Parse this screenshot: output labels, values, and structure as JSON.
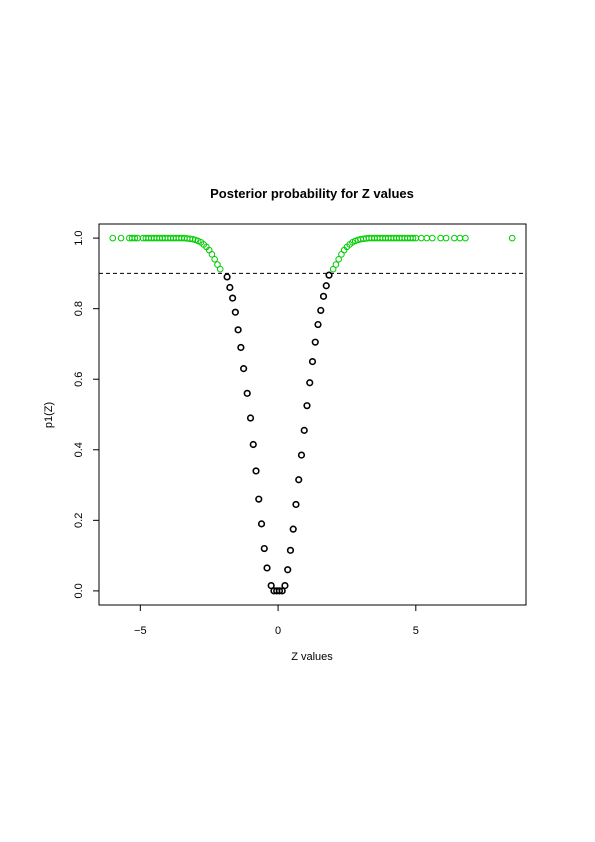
{
  "chart_data": {
    "type": "scatter",
    "title": "Posterior probability for Z values",
    "xlabel": "Z values",
    "ylabel": "p1(Z)",
    "xlim": [
      -6.5,
      9.0
    ],
    "ylim": [
      -0.04,
      1.04
    ],
    "xticks": [
      -5,
      0,
      5
    ],
    "xtick_labels": [
      "−5",
      "0",
      "5"
    ],
    "yticks": [
      0.0,
      0.2,
      0.4,
      0.6,
      0.8,
      1.0
    ],
    "ytick_labels": [
      "0.0",
      "0.2",
      "0.4",
      "0.6",
      "0.8",
      "1.0"
    ],
    "threshold": 0.9,
    "threshold_style": "dashed",
    "grid": false,
    "marker": "open-circle",
    "colors": {
      "above_threshold": "#00cc00",
      "below_threshold": "#000000",
      "threshold_line": "#000000"
    },
    "series": [
      {
        "values_note": "",
        "points": [
          {
            "x": -6.0,
            "y": 1.0
          },
          {
            "x": -5.7,
            "y": 1.0
          },
          {
            "x": -5.4,
            "y": 1.0
          },
          {
            "x": -5.3,
            "y": 1.0
          },
          {
            "x": -5.2,
            "y": 1.0
          },
          {
            "x": -5.1,
            "y": 1.0
          },
          {
            "x": -4.9,
            "y": 1.0
          },
          {
            "x": -4.8,
            "y": 1.0
          },
          {
            "x": -4.7,
            "y": 1.0
          },
          {
            "x": -4.6,
            "y": 1.0
          },
          {
            "x": -4.5,
            "y": 1.0
          },
          {
            "x": -4.4,
            "y": 1.0
          },
          {
            "x": -4.3,
            "y": 1.0
          },
          {
            "x": -4.2,
            "y": 1.0
          },
          {
            "x": -4.1,
            "y": 1.0
          },
          {
            "x": -4.0,
            "y": 1.0
          },
          {
            "x": -3.9,
            "y": 1.0
          },
          {
            "x": -3.8,
            "y": 1.0
          },
          {
            "x": -3.7,
            "y": 1.0
          },
          {
            "x": -3.6,
            "y": 1.0
          },
          {
            "x": -3.5,
            "y": 1.0
          },
          {
            "x": -3.4,
            "y": 1.0
          },
          {
            "x": -3.3,
            "y": 0.999
          },
          {
            "x": -3.2,
            "y": 0.998
          },
          {
            "x": -3.1,
            "y": 0.997
          },
          {
            "x": -3.0,
            "y": 0.995
          },
          {
            "x": -2.9,
            "y": 0.992
          },
          {
            "x": -2.8,
            "y": 0.988
          },
          {
            "x": -2.7,
            "y": 0.982
          },
          {
            "x": -2.6,
            "y": 0.975
          },
          {
            "x": -2.5,
            "y": 0.966
          },
          {
            "x": -2.4,
            "y": 0.954
          },
          {
            "x": -2.3,
            "y": 0.94
          },
          {
            "x": -2.2,
            "y": 0.925
          },
          {
            "x": -2.1,
            "y": 0.912
          },
          {
            "x": -1.85,
            "y": 0.89
          },
          {
            "x": -1.75,
            "y": 0.86
          },
          {
            "x": -1.65,
            "y": 0.83
          },
          {
            "x": -1.55,
            "y": 0.79
          },
          {
            "x": -1.45,
            "y": 0.74
          },
          {
            "x": -1.35,
            "y": 0.69
          },
          {
            "x": -1.25,
            "y": 0.63
          },
          {
            "x": -1.12,
            "y": 0.56
          },
          {
            "x": -1.0,
            "y": 0.49
          },
          {
            "x": -0.9,
            "y": 0.415
          },
          {
            "x": -0.8,
            "y": 0.34
          },
          {
            "x": -0.7,
            "y": 0.26
          },
          {
            "x": -0.6,
            "y": 0.19
          },
          {
            "x": -0.5,
            "y": 0.12
          },
          {
            "x": -0.4,
            "y": 0.065
          },
          {
            "x": -0.25,
            "y": 0.015
          },
          {
            "x": -0.15,
            "y": 0.0
          },
          {
            "x": -0.05,
            "y": 0.0
          },
          {
            "x": 0.05,
            "y": 0.0
          },
          {
            "x": 0.15,
            "y": 0.0
          },
          {
            "x": 0.25,
            "y": 0.015
          },
          {
            "x": 0.35,
            "y": 0.06
          },
          {
            "x": 0.45,
            "y": 0.115
          },
          {
            "x": 0.55,
            "y": 0.175
          },
          {
            "x": 0.65,
            "y": 0.245
          },
          {
            "x": 0.75,
            "y": 0.315
          },
          {
            "x": 0.85,
            "y": 0.385
          },
          {
            "x": 0.95,
            "y": 0.455
          },
          {
            "x": 1.05,
            "y": 0.525
          },
          {
            "x": 1.15,
            "y": 0.59
          },
          {
            "x": 1.25,
            "y": 0.65
          },
          {
            "x": 1.35,
            "y": 0.705
          },
          {
            "x": 1.45,
            "y": 0.755
          },
          {
            "x": 1.55,
            "y": 0.795
          },
          {
            "x": 1.65,
            "y": 0.835
          },
          {
            "x": 1.75,
            "y": 0.865
          },
          {
            "x": 1.85,
            "y": 0.895
          },
          {
            "x": 2.0,
            "y": 0.912
          },
          {
            "x": 2.1,
            "y": 0.925
          },
          {
            "x": 2.2,
            "y": 0.94
          },
          {
            "x": 2.3,
            "y": 0.954
          },
          {
            "x": 2.4,
            "y": 0.966
          },
          {
            "x": 2.5,
            "y": 0.975
          },
          {
            "x": 2.6,
            "y": 0.982
          },
          {
            "x": 2.7,
            "y": 0.988
          },
          {
            "x": 2.8,
            "y": 0.992
          },
          {
            "x": 2.9,
            "y": 0.995
          },
          {
            "x": 3.0,
            "y": 0.997
          },
          {
            "x": 3.1,
            "y": 0.998
          },
          {
            "x": 3.2,
            "y": 0.999
          },
          {
            "x": 3.3,
            "y": 1.0
          },
          {
            "x": 3.4,
            "y": 1.0
          },
          {
            "x": 3.5,
            "y": 1.0
          },
          {
            "x": 3.6,
            "y": 1.0
          },
          {
            "x": 3.7,
            "y": 1.0
          },
          {
            "x": 3.8,
            "y": 1.0
          },
          {
            "x": 3.9,
            "y": 1.0
          },
          {
            "x": 4.0,
            "y": 1.0
          },
          {
            "x": 4.1,
            "y": 1.0
          },
          {
            "x": 4.2,
            "y": 1.0
          },
          {
            "x": 4.3,
            "y": 1.0
          },
          {
            "x": 4.4,
            "y": 1.0
          },
          {
            "x": 4.5,
            "y": 1.0
          },
          {
            "x": 4.6,
            "y": 1.0
          },
          {
            "x": 4.7,
            "y": 1.0
          },
          {
            "x": 4.8,
            "y": 1.0
          },
          {
            "x": 4.9,
            "y": 1.0
          },
          {
            "x": 5.0,
            "y": 1.0
          },
          {
            "x": 5.2,
            "y": 1.0
          },
          {
            "x": 5.4,
            "y": 1.0
          },
          {
            "x": 5.6,
            "y": 1.0
          },
          {
            "x": 5.9,
            "y": 1.0
          },
          {
            "x": 6.1,
            "y": 1.0
          },
          {
            "x": 6.4,
            "y": 1.0
          },
          {
            "x": 6.6,
            "y": 1.0
          },
          {
            "x": 6.8,
            "y": 1.0
          },
          {
            "x": 8.5,
            "y": 1.0
          }
        ]
      }
    ]
  }
}
